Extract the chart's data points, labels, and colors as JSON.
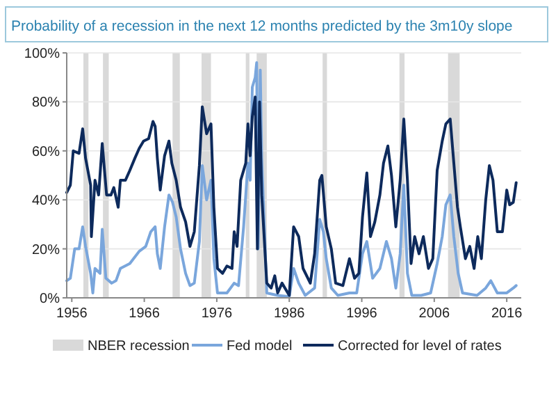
{
  "chart_data": {
    "type": "line",
    "title": "Probability of a recession in the next 12 months predicted by the 3m10y slope",
    "xlim": [
      1955.3,
      2018
    ],
    "xticks": [
      1956,
      1966,
      1976,
      1986,
      1996,
      2006,
      2016
    ],
    "ylim": [
      0,
      100
    ],
    "yticks": [
      {
        "value": 0,
        "label": "0%"
      },
      {
        "value": 20,
        "label": "20%"
      },
      {
        "value": 40,
        "label": "40%"
      },
      {
        "value": 60,
        "label": "60%"
      },
      {
        "value": 80,
        "label": "80%"
      },
      {
        "value": 100,
        "label": "100%"
      }
    ],
    "grid": "y",
    "legend": "bottom",
    "line_style": "solid",
    "marker": "none",
    "bands": [
      {
        "axis": "x",
        "from": 1957.6,
        "to": 1958.3,
        "label": "NBER recession",
        "color": "#d9d9d9"
      },
      {
        "axis": "x",
        "from": 1960.3,
        "to": 1961.1,
        "color": "#d9d9d9"
      },
      {
        "axis": "x",
        "from": 1969.9,
        "to": 1970.9,
        "color": "#d9d9d9"
      },
      {
        "axis": "x",
        "from": 1973.9,
        "to": 1975.2,
        "color": "#d9d9d9"
      },
      {
        "axis": "x",
        "from": 1980.0,
        "to": 1980.5,
        "color": "#d9d9d9"
      },
      {
        "axis": "x",
        "from": 1981.5,
        "to": 1982.9,
        "color": "#d9d9d9"
      },
      {
        "axis": "x",
        "from": 1990.6,
        "to": 1991.2,
        "color": "#d9d9d9"
      },
      {
        "axis": "x",
        "from": 2001.2,
        "to": 2001.9,
        "color": "#d9d9d9"
      },
      {
        "axis": "x",
        "from": 2007.9,
        "to": 2009.5,
        "color": "#d9d9d9"
      }
    ],
    "series": [
      {
        "name": "Fed model",
        "color": "#7aa6dc",
        "x": [
          1955.3,
          1955.8,
          1956.4,
          1957,
          1957.5,
          1957.9,
          1958.6,
          1958.9,
          1959.2,
          1959.9,
          1960.2,
          1960.7,
          1961.5,
          1962.1,
          1962.7,
          1964,
          1965.3,
          1966.2,
          1966.9,
          1967.5,
          1967.8,
          1968.2,
          1968.8,
          1969.4,
          1969.9,
          1970.4,
          1971,
          1971.7,
          1972.3,
          1972.9,
          1973.6,
          1974,
          1974.6,
          1975.2,
          1975.6,
          1976.1,
          1977.4,
          1978.4,
          1979,
          1979.7,
          1980,
          1980.3,
          1980.6,
          1980.9,
          1981.3,
          1981.5,
          1981.7,
          1982,
          1982.2,
          1982.9,
          1984.4,
          1986,
          1986.6,
          1987.3,
          1988.2,
          1989.5,
          1990.2,
          1990.7,
          1991.1,
          1991.8,
          1992.7,
          1994.3,
          1995.3,
          1996.1,
          1996.7,
          1997.5,
          1998.5,
          1999.4,
          2000.1,
          2000.7,
          2001.3,
          2001.8,
          2002.3,
          2002.9,
          2004.2,
          2005.5,
          2006.4,
          2007.1,
          2007.6,
          2008.2,
          2008.7,
          2009.3,
          2009.9,
          2011.9,
          2013.1,
          2013.8,
          2014.7,
          2016,
          2016.9,
          2017.3
        ],
        "values": [
          7,
          8,
          20,
          20,
          29,
          21,
          10,
          2,
          12,
          10,
          28,
          8,
          6,
          7,
          12,
          14,
          19,
          21,
          27,
          29,
          18,
          12,
          29,
          42,
          39,
          33,
          20,
          10,
          5,
          6,
          23,
          54,
          40,
          48,
          16,
          2,
          2,
          6,
          5,
          29,
          42,
          55,
          48,
          86,
          90,
          96,
          20,
          93,
          57,
          2,
          1,
          0.5,
          12,
          6,
          1,
          4,
          32,
          27,
          16,
          4,
          1,
          2,
          2,
          18,
          23,
          8,
          12,
          23,
          16,
          4,
          18,
          46,
          10,
          1,
          1,
          2,
          14,
          25,
          38,
          42,
          25,
          10,
          2,
          1,
          4,
          7,
          2,
          2,
          4,
          5
        ]
      },
      {
        "name": "Corrected for level of rates",
        "color": "#0d2a5c",
        "x": [
          1955.3,
          1955.8,
          1956.2,
          1957,
          1957.5,
          1957.9,
          1958.6,
          1958.7,
          1959.2,
          1959.7,
          1960.2,
          1960.8,
          1961.4,
          1961.8,
          1962.4,
          1962.7,
          1963.4,
          1964,
          1964.7,
          1965.3,
          1965.9,
          1966.6,
          1967.2,
          1967.5,
          1967.8,
          1968.2,
          1968.8,
          1969.4,
          1969.8,
          1970.4,
          1971,
          1971.7,
          1972.3,
          1972.9,
          1973.6,
          1974,
          1974.6,
          1975.2,
          1975.6,
          1976.1,
          1976.8,
          1977.4,
          1978.1,
          1978.4,
          1978.8,
          1979.3,
          1980,
          1980.3,
          1980.6,
          1980.9,
          1981.3,
          1981.6,
          1981.9,
          1982.2,
          1982.9,
          1983.5,
          1984,
          1984.4,
          1985,
          1986,
          1986.6,
          1987.3,
          1987.9,
          1988.9,
          1989.5,
          1990.2,
          1990.5,
          1991.1,
          1991.8,
          1992.4,
          1993.4,
          1994.3,
          1995,
          1995.6,
          1996.1,
          1996.7,
          1997.2,
          1997.8,
          1998.5,
          1999,
          1999.6,
          2000.1,
          2000.7,
          2001.3,
          2001.8,
          2002.3,
          2002.8,
          2003.3,
          2003.9,
          2004.5,
          2005.2,
          2005.8,
          2006.4,
          2007.1,
          2007.6,
          2008.2,
          2008.7,
          2009.2,
          2009.6,
          2010.3,
          2010.9,
          2011.5,
          2012,
          2012.5,
          2013.1,
          2013.6,
          2014.1,
          2014.7,
          2015.4,
          2016,
          2016.4,
          2016.9,
          2017.3
        ],
        "values": [
          43,
          46,
          60,
          59,
          69,
          57,
          46,
          25,
          48,
          42,
          63,
          42,
          42,
          45,
          37,
          48,
          48,
          52,
          57,
          61,
          64,
          65,
          72,
          70,
          57,
          44,
          58,
          64,
          55,
          48,
          37,
          31,
          21,
          27,
          54,
          78,
          67,
          71,
          37,
          12,
          10,
          13,
          12,
          27,
          21,
          48,
          55,
          71,
          58,
          74,
          82,
          20,
          80,
          42,
          6,
          4,
          9,
          2,
          6,
          1,
          29,
          25,
          12,
          6,
          18,
          48,
          50,
          29,
          20,
          6,
          5,
          16,
          8,
          10,
          33,
          51,
          25,
          31,
          42,
          55,
          62,
          50,
          29,
          48,
          73,
          48,
          14,
          25,
          18,
          25,
          12,
          16,
          52,
          64,
          71,
          73,
          55,
          37,
          29,
          16,
          21,
          12,
          25,
          16,
          40,
          54,
          48,
          27,
          27,
          44,
          38,
          39,
          47
        ]
      }
    ]
  }
}
